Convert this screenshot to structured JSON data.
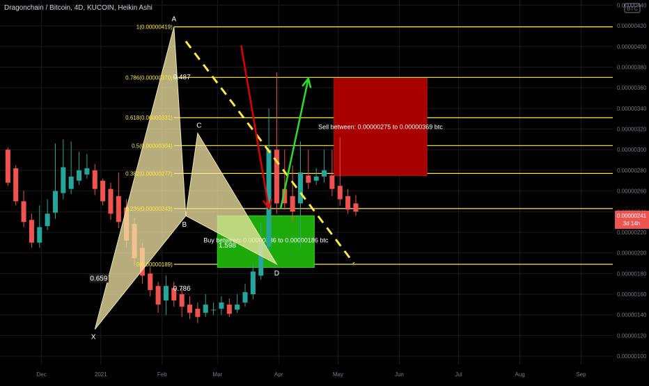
{
  "header": {
    "title": "Dragonchain / Bitcoin, 4D, KUCOIN, Heikin Ashi",
    "currency_badge": "BTC"
  },
  "price_tag": {
    "price": "0.00000241",
    "countdown": "3d 14h"
  },
  "chart_data": {
    "type": "candlestick",
    "y_axis": {
      "ylim": [
        9.2e-07,
        4.45e-06
      ],
      "ticks": [
        "0.00000100",
        "0.00000120",
        "0.00000140",
        "0.00000160",
        "0.00000180",
        "0.00000200",
        "0.00000220",
        "0.00000240",
        "0.00000260",
        "0.00000280",
        "0.00000300",
        "0.00000320",
        "0.00000340",
        "0.00000360",
        "0.00000380",
        "0.00000400",
        "0.00000420",
        "0.00000440"
      ]
    },
    "x_axis": {
      "ticks": [
        {
          "label": "Dec",
          "t": -27
        },
        {
          "label": "2021",
          "t": 3
        },
        {
          "label": "Feb",
          "t": 34
        },
        {
          "label": "Mar",
          "t": 62
        },
        {
          "label": "Apr",
          "t": 93
        },
        {
          "label": "May",
          "t": 123
        },
        {
          "label": "Jun",
          "t": 154
        },
        {
          "label": "Jul",
          "t": 184
        },
        {
          "label": "Aug",
          "t": 215
        },
        {
          "label": "Sep",
          "t": 246
        }
      ],
      "time_unit": "days since 2021-01-01"
    },
    "candles": [
      {
        "o": 300,
        "c": 268,
        "h": 302,
        "l": 265
      },
      {
        "o": 282,
        "c": 250,
        "h": 285,
        "l": 246
      },
      {
        "o": 250,
        "c": 230,
        "h": 260,
        "l": 225
      },
      {
        "o": 232,
        "c": 210,
        "h": 238,
        "l": 205
      },
      {
        "o": 210,
        "c": 225,
        "h": 246,
        "l": 205
      },
      {
        "o": 226,
        "c": 238,
        "h": 252,
        "l": 222
      },
      {
        "o": 239,
        "c": 260,
        "h": 306,
        "l": 233
      },
      {
        "o": 258,
        "c": 283,
        "h": 310,
        "l": 252
      },
      {
        "o": 262,
        "c": 274,
        "h": 308,
        "l": 257
      },
      {
        "o": 270,
        "c": 280,
        "h": 298,
        "l": 266
      },
      {
        "o": 276,
        "c": 282,
        "h": 296,
        "l": 272
      },
      {
        "o": 280,
        "c": 262,
        "h": 286,
        "l": 256
      },
      {
        "o": 270,
        "c": 250,
        "h": 272,
        "l": 246
      },
      {
        "o": 262,
        "c": 238,
        "h": 268,
        "l": 232
      },
      {
        "o": 255,
        "c": 230,
        "h": 278,
        "l": 224
      },
      {
        "o": 244,
        "c": 212,
        "h": 252,
        "l": 205
      },
      {
        "o": 228,
        "c": 195,
        "h": 234,
        "l": 188
      },
      {
        "o": 205,
        "c": 178,
        "h": 210,
        "l": 170
      },
      {
        "o": 180,
        "c": 164,
        "h": 186,
        "l": 158
      },
      {
        "o": 168,
        "c": 150,
        "h": 172,
        "l": 142
      },
      {
        "o": 154,
        "c": 168,
        "h": 178,
        "l": 140
      },
      {
        "o": 166,
        "c": 154,
        "h": 172,
        "l": 148
      },
      {
        "o": 160,
        "c": 148,
        "h": 166,
        "l": 138
      },
      {
        "o": 150,
        "c": 142,
        "h": 158,
        "l": 136
      },
      {
        "o": 146,
        "c": 138,
        "h": 152,
        "l": 132
      },
      {
        "o": 142,
        "c": 150,
        "h": 160,
        "l": 138
      },
      {
        "o": 145,
        "c": 145,
        "h": 152,
        "l": 140
      },
      {
        "o": 146,
        "c": 152,
        "h": 158,
        "l": 140
      },
      {
        "o": 150,
        "c": 141,
        "h": 156,
        "l": 138
      },
      {
        "o": 145,
        "c": 150,
        "h": 160,
        "l": 142
      },
      {
        "o": 152,
        "c": 162,
        "h": 170,
        "l": 148
      },
      {
        "o": 160,
        "c": 182,
        "h": 190,
        "l": 155
      },
      {
        "o": 178,
        "c": 210,
        "h": 230,
        "l": 174
      },
      {
        "o": 206,
        "c": 300,
        "h": 340,
        "l": 200
      },
      {
        "o": 300,
        "c": 248,
        "h": 375,
        "l": 238
      },
      {
        "o": 262,
        "c": 248,
        "h": 300,
        "l": 242
      },
      {
        "o": 255,
        "c": 240,
        "h": 285,
        "l": 230
      },
      {
        "o": 248,
        "c": 278,
        "h": 308,
        "l": 205
      },
      {
        "o": 275,
        "c": 268,
        "h": 300,
        "l": 262
      },
      {
        "o": 270,
        "c": 274,
        "h": 282,
        "l": 266
      },
      {
        "o": 274,
        "c": 280,
        "h": 300,
        "l": 268
      },
      {
        "o": 275,
        "c": 262,
        "h": 300,
        "l": 255
      },
      {
        "o": 265,
        "c": 252,
        "h": 312,
        "l": 246
      },
      {
        "o": 255,
        "c": 242,
        "h": 262,
        "l": 238
      },
      {
        "o": 248,
        "c": 240,
        "h": 256,
        "l": 236
      }
    ],
    "harmonic_pattern": {
      "points": [
        {
          "label": "X",
          "t": 0,
          "p": 1.26e-06
        },
        {
          "label": "A",
          "t": 40,
          "p": 4.19e-06
        },
        {
          "label": "B",
          "t": 46,
          "p": 2.36e-06
        },
        {
          "label": "C",
          "t": 52,
          "p": 3.16e-06
        },
        {
          "label": "D",
          "t": 92,
          "p": 1.89e-06
        }
      ],
      "ratios": [
        {
          "text": "0.659",
          "t": 2,
          "p": 1.74e-06
        },
        {
          "text": "0.786",
          "t": 44,
          "p": 1.64e-06
        },
        {
          "text": "0.487",
          "t": 44,
          "p": 3.69e-06
        },
        {
          "text": "1.598",
          "t": 67,
          "p": 2.06e-06
        }
      ]
    },
    "fib_levels": [
      {
        "label": "1(0.00000419)",
        "p": 4.19e-06
      },
      {
        "label": "0.786(0.00000370)",
        "p": 3.7e-06
      },
      {
        "label": "0.618(0.00000331)",
        "p": 3.31e-06
      },
      {
        "label": "0.5(0.00000304)",
        "p": 3.04e-06
      },
      {
        "label": "0.382(0.00000277)",
        "p": 2.77e-06
      },
      {
        "label": "0.236(0.00000243)",
        "p": 2.43e-06
      },
      {
        "label": "0(0.00000189)",
        "p": 1.89e-06
      }
    ],
    "zones": {
      "buy": {
        "text": "Buy between: 0.00000236 to 0.00000186 btc",
        "t0": 62,
        "t1": 111,
        "p_top": 2.36e-06,
        "p_bot": 1.86e-06,
        "color": "#1faa0c"
      },
      "sell": {
        "text": "Sell between: 0.00000275 to 0.00000369 btc",
        "t0": 121,
        "t1": 168,
        "p_top": 3.69e-06,
        "p_bot": 2.75e-06,
        "color": "#a80000"
      }
    },
    "trendlines": {
      "dashed": {
        "t0": 46,
        "p0": 4.05e-06,
        "t1": 131,
        "p1": 1.9e-06,
        "color": "#ffeb3b"
      },
      "red_arrow": {
        "t0": 74,
        "p0": 4.01e-06,
        "t1": 88,
        "p1": 2.43e-06,
        "color": "#e00000"
      },
      "green_arrow": {
        "t0": 94,
        "p0": 2.43e-06,
        "t1": 108,
        "p1": 3.69e-06,
        "color": "#26e226"
      }
    },
    "colors": {
      "up": "#26a69a",
      "down": "#ef5350",
      "fib": "#ffeb3b",
      "pattern": "#f3e6a6",
      "grid": "#1c1c1c",
      "axis_text": "#787b86"
    }
  }
}
